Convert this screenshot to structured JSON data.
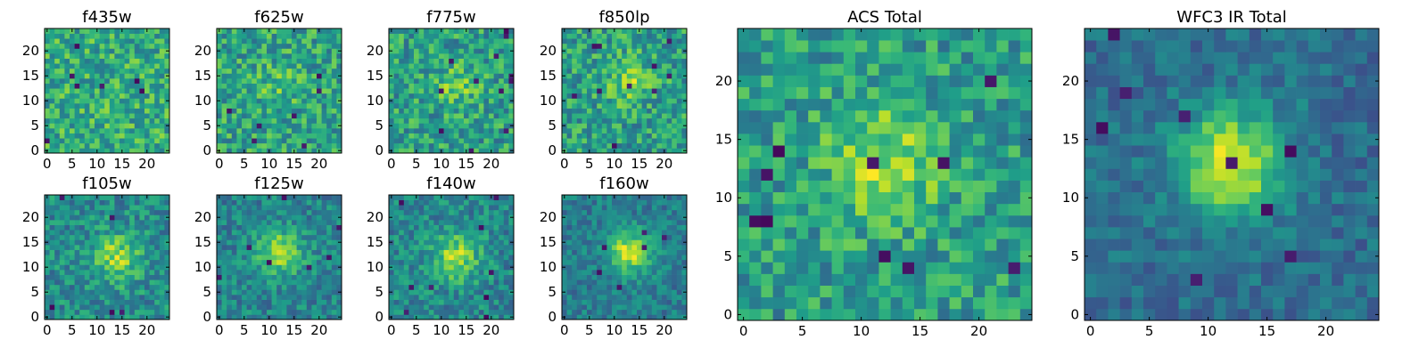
{
  "chart_data": [
    {
      "type": "heatmap",
      "title": "f435w",
      "xticks": [
        "0",
        "5",
        "10",
        "15",
        "20"
      ],
      "yticks": [
        "0",
        "5",
        "10",
        "15",
        "20"
      ],
      "xlim": [
        -0.5,
        24.5
      ],
      "ylim": [
        -0.5,
        24.5
      ],
      "grid": false,
      "colormap": "viridis",
      "center": [
        12,
        12
      ],
      "peak": 0.0,
      "sigma": 3.0,
      "noise": 0.22,
      "base": 0.62,
      "bad_pixels": 8,
      "seed": 11
    },
    {
      "type": "heatmap",
      "title": "f625w",
      "xticks": [
        "0",
        "5",
        "10",
        "15",
        "20"
      ],
      "yticks": [
        "0",
        "5",
        "10",
        "15",
        "20"
      ],
      "xlim": [
        -0.5,
        24.5
      ],
      "ylim": [
        -0.5,
        24.5
      ],
      "grid": false,
      "colormap": "viridis",
      "center": [
        12,
        13
      ],
      "peak": 0.12,
      "sigma": 3.0,
      "noise": 0.22,
      "base": 0.58,
      "bad_pixels": 7,
      "seed": 23
    },
    {
      "type": "heatmap",
      "title": "f775w",
      "xticks": [
        "0",
        "5",
        "10",
        "15",
        "20"
      ],
      "yticks": [
        "0",
        "5",
        "10",
        "15",
        "20"
      ],
      "xlim": [
        -0.5,
        24.5
      ],
      "ylim": [
        -0.5,
        24.5
      ],
      "grid": false,
      "colormap": "viridis",
      "center": [
        13,
        13
      ],
      "peak": 0.2,
      "sigma": 3.0,
      "noise": 0.22,
      "base": 0.56,
      "bad_pixels": 12,
      "seed": 37
    },
    {
      "type": "heatmap",
      "title": "f850lp",
      "xticks": [
        "0",
        "5",
        "10",
        "15",
        "20"
      ],
      "yticks": [
        "0",
        "5",
        "10",
        "15",
        "20"
      ],
      "xlim": [
        -0.5,
        24.5
      ],
      "ylim": [
        -0.5,
        24.5
      ],
      "grid": false,
      "colormap": "viridis",
      "center": [
        13,
        14
      ],
      "peak": 0.22,
      "sigma": 3.2,
      "noise": 0.22,
      "base": 0.56,
      "bad_pixels": 10,
      "seed": 41
    },
    {
      "type": "heatmap",
      "title": "f105w",
      "xticks": [
        "0",
        "5",
        "10",
        "15",
        "20"
      ],
      "yticks": [
        "0",
        "5",
        "10",
        "15",
        "20"
      ],
      "xlim": [
        -0.5,
        24.5
      ],
      "ylim": [
        -0.5,
        24.5
      ],
      "grid": false,
      "colormap": "viridis",
      "center": [
        14,
        12
      ],
      "peak": 0.35,
      "sigma": 3.4,
      "noise": 0.18,
      "base": 0.48,
      "bad_pixels": 5,
      "seed": 53
    },
    {
      "type": "heatmap",
      "title": "f125w",
      "xticks": [
        "0",
        "5",
        "10",
        "15",
        "20"
      ],
      "yticks": [
        "0",
        "5",
        "10",
        "15",
        "20"
      ],
      "xlim": [
        -0.5,
        24.5
      ],
      "ylim": [
        -0.5,
        24.5
      ],
      "grid": false,
      "colormap": "viridis",
      "center": [
        12,
        13
      ],
      "peak": 0.42,
      "sigma": 3.2,
      "noise": 0.16,
      "base": 0.45,
      "bad_pixels": 7,
      "seed": 67
    },
    {
      "type": "heatmap",
      "title": "f140w",
      "xticks": [
        "0",
        "5",
        "10",
        "15",
        "20"
      ],
      "yticks": [
        "0",
        "5",
        "10",
        "15",
        "20"
      ],
      "xlim": [
        -0.5,
        24.5
      ],
      "ylim": [
        -0.5,
        24.5
      ],
      "grid": false,
      "colormap": "viridis",
      "center": [
        13,
        12
      ],
      "peak": 0.38,
      "sigma": 3.4,
      "noise": 0.17,
      "base": 0.46,
      "bad_pixels": 9,
      "seed": 79
    },
    {
      "type": "heatmap",
      "title": "f160w",
      "xticks": [
        "0",
        "5",
        "10",
        "15",
        "20"
      ],
      "yticks": [
        "0",
        "5",
        "10",
        "15",
        "20"
      ],
      "xlim": [
        -0.5,
        24.5
      ],
      "ylim": [
        -0.5,
        24.5
      ],
      "grid": false,
      "colormap": "viridis",
      "center": [
        13,
        13
      ],
      "peak": 0.5,
      "sigma": 3.0,
      "noise": 0.14,
      "base": 0.42,
      "bad_pixels": 6,
      "seed": 83
    },
    {
      "type": "heatmap",
      "title": "ACS Total",
      "xticks": [
        "0",
        "5",
        "10",
        "15",
        "20"
      ],
      "yticks": [
        "0",
        "5",
        "10",
        "15",
        "20"
      ],
      "xlim": [
        -0.5,
        24.5
      ],
      "ylim": [
        -0.5,
        24.5
      ],
      "grid": false,
      "colormap": "viridis",
      "center": [
        12,
        13
      ],
      "peak": 0.3,
      "sigma": 3.5,
      "noise": 0.2,
      "base": 0.55,
      "bad_pixels": 10,
      "seed": 97
    },
    {
      "type": "heatmap",
      "title": "WFC3 IR Total",
      "xticks": [
        "0",
        "5",
        "10",
        "15",
        "20"
      ],
      "yticks": [
        "0",
        "5",
        "10",
        "15",
        "20"
      ],
      "xlim": [
        -0.5,
        24.5
      ],
      "ylim": [
        -0.5,
        24.5
      ],
      "grid": false,
      "colormap": "viridis",
      "center": [
        12,
        13
      ],
      "peak": 0.6,
      "sigma": 3.2,
      "noise": 0.12,
      "base": 0.36,
      "bad_pixels": 9,
      "seed": 101
    }
  ]
}
